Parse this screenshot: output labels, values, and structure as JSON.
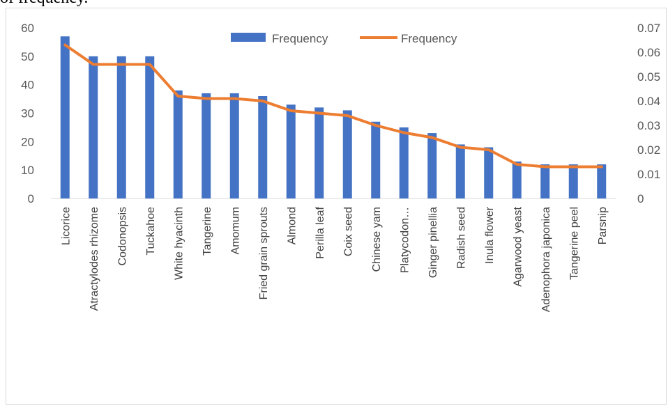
{
  "caption": "of frequency.",
  "chart_data": {
    "type": "bar",
    "categories": [
      "Licorice",
      "Atractylodes rhizome",
      "Codonopsis",
      "Tuckahoe",
      "White hyacinth",
      "Tangerine",
      "Amomum",
      "Fried grain sprouts",
      "Almond",
      "Perilla leaf",
      "Coix seed",
      "Chinese yam",
      "Platycodon…",
      "Ginger pinellia",
      "Radish seed",
      "Inula flower",
      "Agarwood yeast",
      "Adenophora japonica",
      "Tangerine peel",
      "Parsnip"
    ],
    "series": [
      {
        "name": "Frequency",
        "type": "bar",
        "axis": "left",
        "color": "#4472c4",
        "values": [
          57,
          50,
          50,
          50,
          38,
          37,
          37,
          36,
          33,
          32,
          31,
          27,
          25,
          23,
          19,
          18,
          13,
          12,
          12,
          12
        ]
      },
      {
        "name": "Frequency",
        "type": "line",
        "axis": "right",
        "color": "#ed7d31",
        "values": [
          0.063,
          0.055,
          0.055,
          0.055,
          0.042,
          0.041,
          0.041,
          0.04,
          0.036,
          0.035,
          0.034,
          0.03,
          0.027,
          0.025,
          0.021,
          0.02,
          0.014,
          0.013,
          0.013,
          0.013
        ]
      }
    ],
    "y_left": {
      "min": 0,
      "max": 60,
      "ticks": [
        "0",
        "10",
        "20",
        "30",
        "40",
        "50",
        "60"
      ]
    },
    "y_right": {
      "min": 0,
      "max": 0.07,
      "ticks": [
        "0",
        "0.01",
        "0.02",
        "0.03",
        "0.04",
        "0.05",
        "0.06",
        "0.07"
      ]
    },
    "legend": {
      "position": "top-center",
      "entries": [
        "Frequency",
        "Frequency"
      ]
    },
    "grid": false
  }
}
